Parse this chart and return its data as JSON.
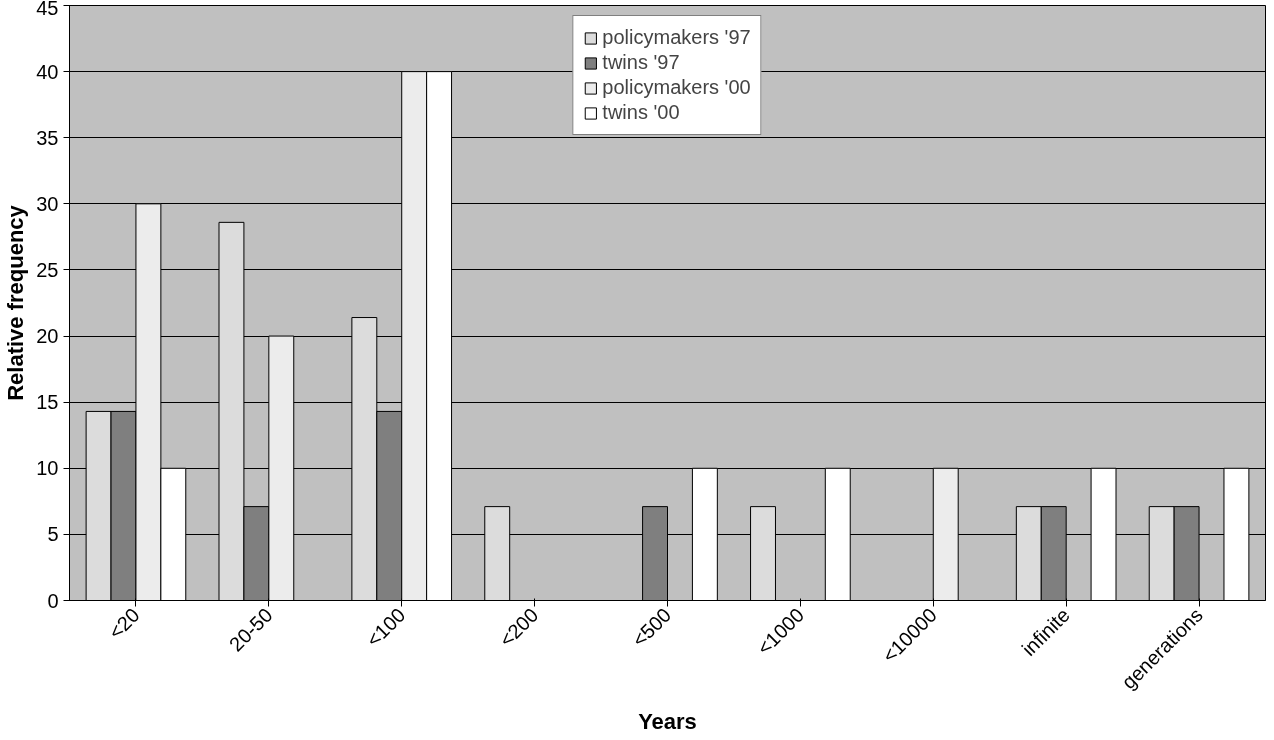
{
  "chart_data": {
    "type": "bar",
    "xlabel": "Years",
    "ylabel": "Relative frequency",
    "categories": [
      "<20",
      "20-50",
      "<100",
      "<200",
      "<500",
      "<1000",
      "<10000",
      "infinite",
      "generations"
    ],
    "series": [
      {
        "name": "policymakers '97",
        "color": "#dcdcdc",
        "values": [
          14.3,
          28.6,
          21.4,
          7.1,
          0,
          7.1,
          0,
          7.1,
          7.1
        ]
      },
      {
        "name": "twins '97",
        "color": "#7f7f7f",
        "values": [
          14.3,
          7.1,
          14.3,
          0,
          7.1,
          0,
          0,
          7.1,
          7.1
        ]
      },
      {
        "name": "policymakers '00",
        "color": "#ececec",
        "values": [
          30,
          20,
          40,
          0,
          0,
          0,
          10,
          0,
          0
        ]
      },
      {
        "name": "twins '00",
        "color": "#ffffff",
        "values": [
          10,
          0,
          40,
          0,
          10,
          10,
          0,
          10,
          10
        ]
      }
    ],
    "ylim": [
      0,
      45
    ],
    "yticks": [
      0,
      5,
      10,
      15,
      20,
      25,
      30,
      35,
      40,
      45
    ],
    "grid": "y",
    "legend": "top"
  }
}
